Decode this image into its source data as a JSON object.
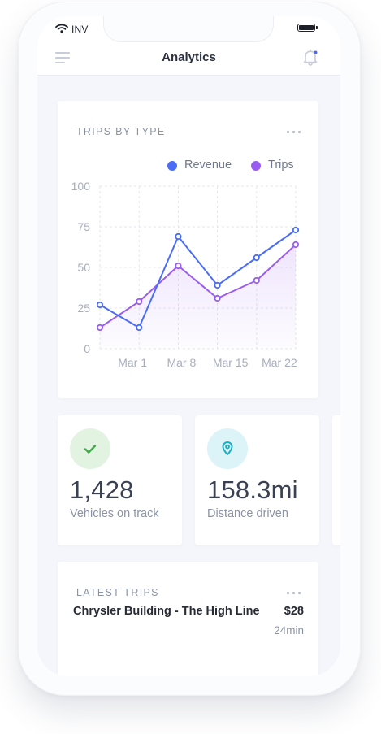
{
  "status_bar": {
    "carrier": "INV",
    "wifi_icon": "wifi-icon",
    "battery_icon": "battery-icon"
  },
  "nav": {
    "title": "Analytics",
    "menu_icon": "hamburger-menu-icon",
    "bell_icon": "bell-notification-icon",
    "notification_dot_color": "#4a6cf7"
  },
  "trips_by_type": {
    "title": "TRIPS BY TYPE",
    "more_icon": "more-horizontal-icon",
    "chart_data": {
      "type": "line",
      "x": [
        0,
        1,
        2,
        3,
        4,
        5
      ],
      "x_tick_labels": [
        "Mar 1",
        "Mar 8",
        "Mar 15",
        "Mar 22"
      ],
      "ylim": [
        0,
        100
      ],
      "y_ticks": [
        0,
        25,
        50,
        75,
        100
      ],
      "grid": true,
      "legend_position": "top-right",
      "series": [
        {
          "name": "Revenue",
          "color": "#4a6cf7",
          "values": [
            27,
            13,
            69,
            39,
            56,
            73
          ],
          "fill": false
        },
        {
          "name": "Trips",
          "color": "#9a5cf0",
          "values": [
            13,
            29,
            51,
            31,
            42,
            64
          ],
          "fill": true
        }
      ]
    }
  },
  "stats": [
    {
      "value": "1,428",
      "label": "Vehicles on track",
      "icon": "check-icon",
      "icon_color": "#43a84a",
      "icon_bg": "#e2f3e2"
    },
    {
      "value": "158.3mi",
      "label": "Distance driven",
      "icon": "map-pin-icon",
      "icon_color": "#1aaec3",
      "icon_bg": "#dcf4f7"
    }
  ],
  "latest_trips": {
    "title": "LATEST TRIPS",
    "more_icon": "more-horizontal-icon",
    "items": [
      {
        "name": "Chrysler Building - The High Line",
        "price": "$28",
        "duration": "24min"
      }
    ]
  }
}
